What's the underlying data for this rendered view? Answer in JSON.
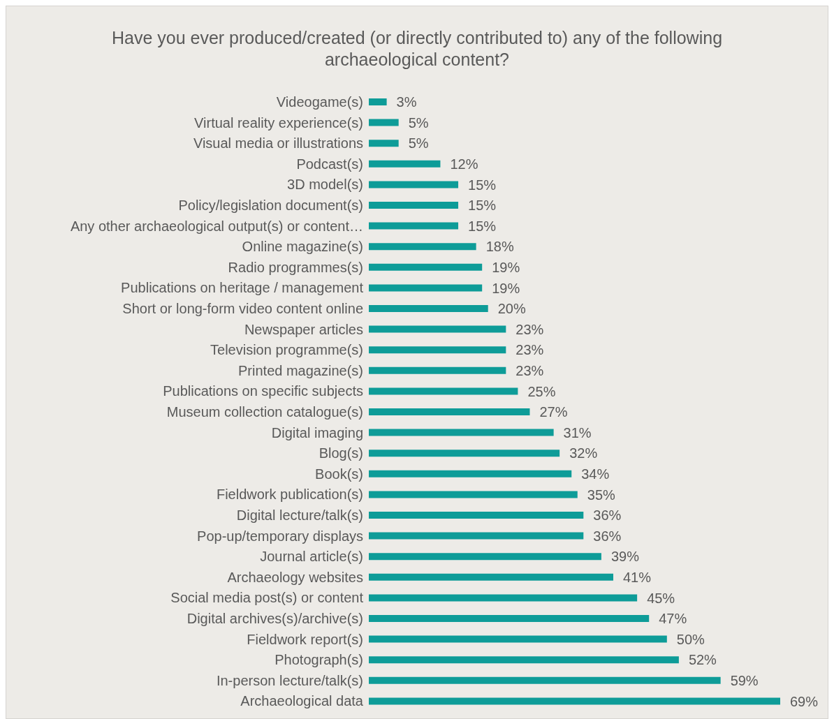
{
  "chart_data": {
    "type": "bar",
    "orientation": "horizontal",
    "title": "Have you ever produced/created (or directly contributed to) any of the following archaeological content?",
    "categories": [
      "Videogame(s)",
      "Virtual reality experience(s)",
      "Visual media or illustrations",
      "Podcast(s)",
      "3D model(s)",
      "Policy/legislation document(s)",
      "Any other archaeological output(s) or content…",
      "Online magazine(s)",
      "Radio programmes(s)",
      "Publications on heritage / management",
      "Short or long-form video content online",
      "Newspaper articles",
      "Television programme(s)",
      "Printed magazine(s)",
      "Publications on specific subjects",
      "Museum collection catalogue(s)",
      "Digital imaging",
      "Blog(s)",
      "Book(s)",
      "Fieldwork publication(s)",
      "Digital lecture/talk(s)",
      "Pop-up/temporary displays",
      "Journal article(s)",
      "Archaeology websites",
      "Social media post(s) or content",
      "Digital archives(s)/archive(s)",
      "Fieldwork report(s)",
      "Photograph(s)",
      "In-person lecture/talk(s)",
      "Archaeological data"
    ],
    "values": [
      3,
      5,
      5,
      12,
      15,
      15,
      15,
      18,
      19,
      19,
      20,
      23,
      23,
      23,
      25,
      27,
      31,
      32,
      34,
      35,
      36,
      36,
      39,
      41,
      45,
      47,
      50,
      52,
      59,
      69
    ],
    "color": "#0e9c98",
    "data_labels": true,
    "value_labels": [
      "3%",
      "5%",
      "5%",
      "12%",
      "15%",
      "15%",
      "15%",
      "18%",
      "19%",
      "19%",
      "20%",
      "23%",
      "23%",
      "23%",
      "25%",
      "27%",
      "31%",
      "32%",
      "34%",
      "35%",
      "36%",
      "36%",
      "39%",
      "41%",
      "45%",
      "47%",
      "50%",
      "52%",
      "59%",
      "69%"
    ]
  }
}
